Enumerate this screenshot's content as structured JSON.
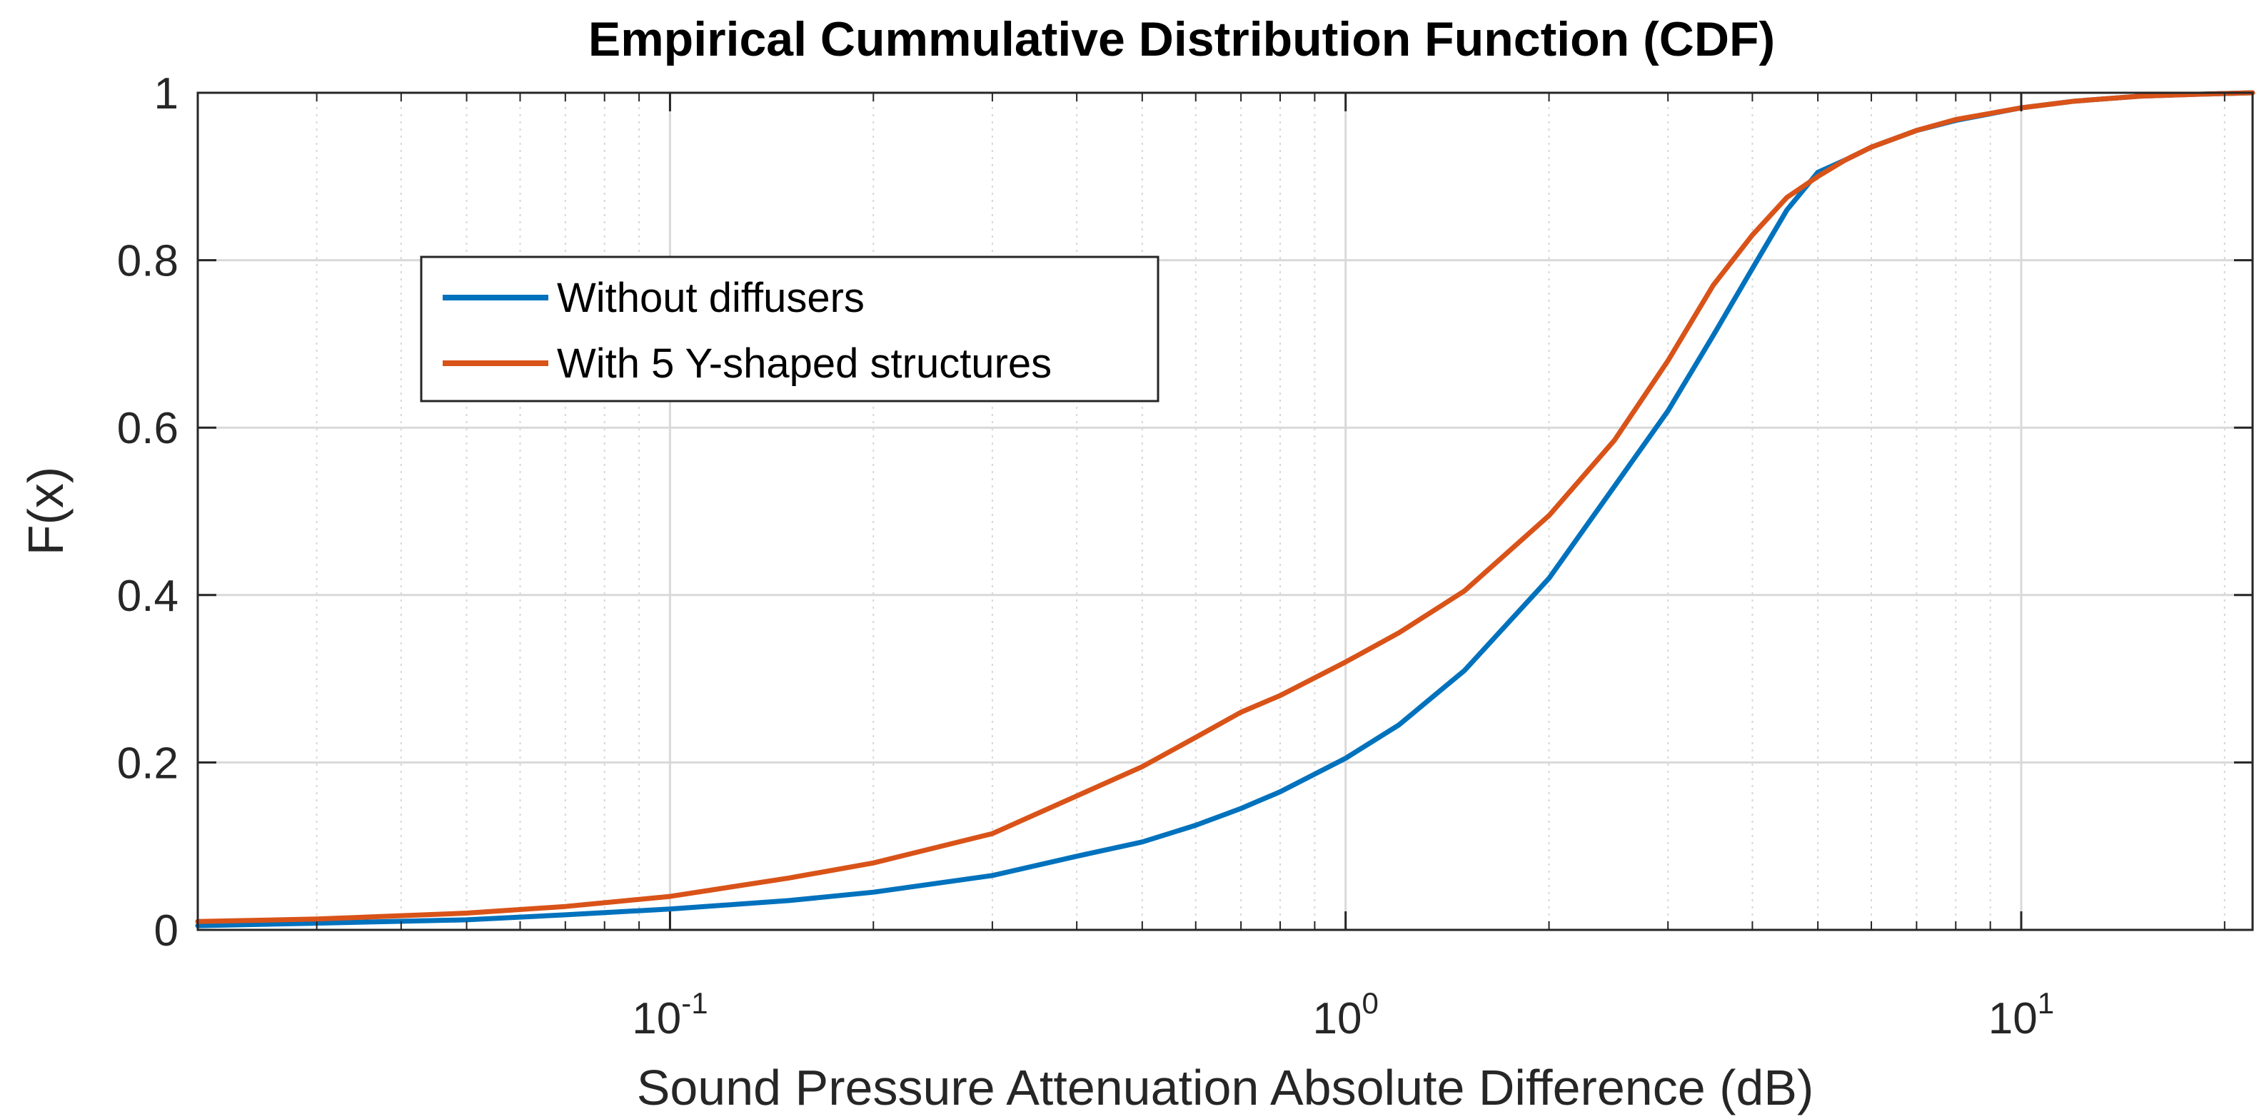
{
  "chart_data": {
    "type": "line",
    "title": "Empirical Cummulative Distribution Function (CDF)",
    "xlabel": "Sound Pressure Attenuation Absolute Difference (dB)",
    "ylabel": "F(x)",
    "xscale": "log",
    "xlim": [
      0.02,
      22
    ],
    "ylim": [
      0,
      1
    ],
    "grid": true,
    "minor_grid_x": true,
    "legend_position": "upper-left",
    "x_ticks": [
      {
        "value": 0.1,
        "base": "10",
        "exp": "-1"
      },
      {
        "value": 1,
        "base": "10",
        "exp": "0"
      },
      {
        "value": 10,
        "base": "10",
        "exp": "1"
      }
    ],
    "y_ticks": [
      {
        "value": 0,
        "label": "0"
      },
      {
        "value": 0.2,
        "label": "0.2"
      },
      {
        "value": 0.4,
        "label": "0.4"
      },
      {
        "value": 0.6,
        "label": "0.6"
      },
      {
        "value": 0.8,
        "label": "0.8"
      },
      {
        "value": 1,
        "label": "1"
      }
    ],
    "series": [
      {
        "name": "Without diffusers",
        "color": "#0072BD",
        "x": [
          0.02,
          0.03,
          0.05,
          0.07,
          0.1,
          0.15,
          0.2,
          0.3,
          0.4,
          0.5,
          0.6,
          0.7,
          0.8,
          1.0,
          1.2,
          1.5,
          2.0,
          2.5,
          3.0,
          3.5,
          4.0,
          4.5,
          5.0,
          5.5,
          6.0,
          7.0,
          8.0,
          10.0,
          12.0,
          15.0,
          18.0,
          22.0
        ],
        "y": [
          0.005,
          0.008,
          0.012,
          0.018,
          0.025,
          0.035,
          0.045,
          0.065,
          0.088,
          0.105,
          0.125,
          0.145,
          0.165,
          0.205,
          0.245,
          0.31,
          0.42,
          0.53,
          0.62,
          0.71,
          0.79,
          0.86,
          0.905,
          0.92,
          0.935,
          0.955,
          0.967,
          0.982,
          0.99,
          0.996,
          0.998,
          1.0
        ]
      },
      {
        "name": "With 5 Y-shaped structures",
        "color": "#D95319",
        "x": [
          0.02,
          0.03,
          0.05,
          0.07,
          0.1,
          0.15,
          0.2,
          0.3,
          0.4,
          0.5,
          0.6,
          0.7,
          0.8,
          1.0,
          1.2,
          1.5,
          2.0,
          2.5,
          3.0,
          3.5,
          4.0,
          4.5,
          5.0,
          5.5,
          6.0,
          7.0,
          8.0,
          10.0,
          12.0,
          15.0,
          18.0,
          22.0
        ],
        "y": [
          0.01,
          0.013,
          0.02,
          0.028,
          0.04,
          0.062,
          0.08,
          0.115,
          0.16,
          0.195,
          0.23,
          0.26,
          0.28,
          0.32,
          0.355,
          0.405,
          0.495,
          0.585,
          0.68,
          0.77,
          0.83,
          0.875,
          0.9,
          0.92,
          0.935,
          0.955,
          0.968,
          0.982,
          0.99,
          0.996,
          0.998,
          1.0
        ]
      }
    ]
  }
}
